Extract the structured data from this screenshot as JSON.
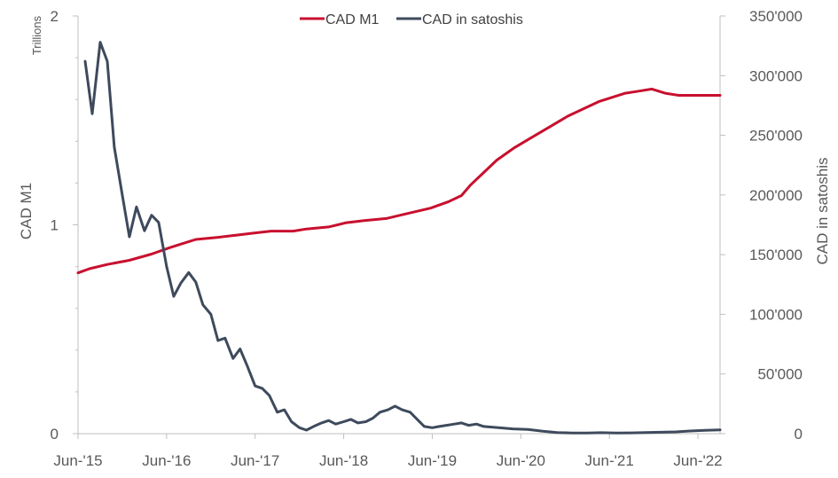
{
  "chart_data": {
    "type": "line",
    "title": "",
    "legend_position": "top",
    "x_tick_labels": [
      "Jun-'15",
      "Jun-'16",
      "Jun-'17",
      "Jun-'18",
      "Jun-'19",
      "Jun-'20",
      "Jun-'21",
      "Jun-'22"
    ],
    "x_tick_years": [
      2015.42,
      2016.42,
      2017.42,
      2018.42,
      2019.42,
      2020.42,
      2021.42,
      2022.42
    ],
    "xlim": [
      2015.42,
      2022.67
    ],
    "left_axis": {
      "label": "CAD M1",
      "unit_label": "Trillions",
      "ylim": [
        0,
        2
      ],
      "tick_values": [
        0,
        1,
        2
      ],
      "tick_labels": [
        "0",
        "1",
        "2"
      ]
    },
    "right_axis": {
      "label": "CAD in satoshis",
      "ylim": [
        0,
        350000
      ],
      "tick_values": [
        0,
        50000,
        100000,
        150000,
        200000,
        250000,
        300000,
        350000
      ],
      "tick_labels": [
        "0",
        "50'000",
        "100'000",
        "150'000",
        "200'000",
        "250'000",
        "300'000",
        "350'000"
      ]
    },
    "series": [
      {
        "name": "CAD M1",
        "axis": "left",
        "color": "#c8102e",
        "x": [
          2015.42,
          2015.55,
          2015.75,
          2016.0,
          2016.25,
          2016.45,
          2016.6,
          2016.75,
          2017.0,
          2017.2,
          2017.4,
          2017.6,
          2017.85,
          2018.0,
          2018.25,
          2018.45,
          2018.65,
          2018.9,
          2019.1,
          2019.4,
          2019.6,
          2019.75,
          2019.85,
          2020.0,
          2020.15,
          2020.35,
          2020.55,
          2020.75,
          2020.95,
          2021.15,
          2021.3,
          2021.45,
          2021.6,
          2021.75,
          2021.9,
          2022.05,
          2022.2,
          2022.4,
          2022.67
        ],
        "values": [
          0.77,
          0.79,
          0.81,
          0.83,
          0.86,
          0.89,
          0.91,
          0.93,
          0.94,
          0.95,
          0.96,
          0.97,
          0.97,
          0.98,
          0.99,
          1.01,
          1.02,
          1.03,
          1.05,
          1.08,
          1.11,
          1.14,
          1.19,
          1.25,
          1.31,
          1.37,
          1.42,
          1.47,
          1.52,
          1.56,
          1.59,
          1.61,
          1.63,
          1.64,
          1.65,
          1.63,
          1.62,
          1.62,
          1.62
        ]
      },
      {
        "name": "CAD in satoshis",
        "axis": "right",
        "color": "#3e4a5c",
        "x": [
          2015.5,
          2015.58,
          2015.67,
          2015.75,
          2015.83,
          2015.92,
          2016.0,
          2016.08,
          2016.17,
          2016.25,
          2016.33,
          2016.42,
          2016.5,
          2016.58,
          2016.67,
          2016.75,
          2016.83,
          2016.92,
          2017.0,
          2017.08,
          2017.17,
          2017.25,
          2017.33,
          2017.42,
          2017.5,
          2017.58,
          2017.67,
          2017.75,
          2017.83,
          2017.92,
          2018.0,
          2018.08,
          2018.17,
          2018.25,
          2018.33,
          2018.42,
          2018.5,
          2018.58,
          2018.67,
          2018.75,
          2018.83,
          2018.92,
          2019.0,
          2019.08,
          2019.17,
          2019.25,
          2019.33,
          2019.42,
          2019.5,
          2019.58,
          2019.67,
          2019.75,
          2019.83,
          2019.92,
          2020.0,
          2020.17,
          2020.33,
          2020.5,
          2020.67,
          2020.83,
          2021.0,
          2021.17,
          2021.33,
          2021.5,
          2021.67,
          2021.83,
          2022.0,
          2022.17,
          2022.33,
          2022.5,
          2022.67
        ],
        "values": [
          312000,
          268000,
          328000,
          312000,
          240000,
          200000,
          165000,
          190000,
          170000,
          183000,
          177000,
          140000,
          115000,
          126000,
          135000,
          127000,
          108000,
          100000,
          78000,
          80000,
          63000,
          71000,
          57000,
          40000,
          38000,
          32000,
          18000,
          20000,
          10000,
          5000,
          3000,
          6000,
          9000,
          11000,
          8000,
          10000,
          12000,
          9000,
          10000,
          13000,
          18000,
          20000,
          23000,
          20000,
          18000,
          12000,
          6000,
          5000,
          6000,
          7000,
          8000,
          9000,
          7000,
          8000,
          6000,
          5000,
          4000,
          3500,
          2000,
          1000,
          500,
          500,
          800,
          500,
          700,
          900,
          1200,
          1500,
          2200,
          2800,
          3200
        ]
      }
    ]
  }
}
